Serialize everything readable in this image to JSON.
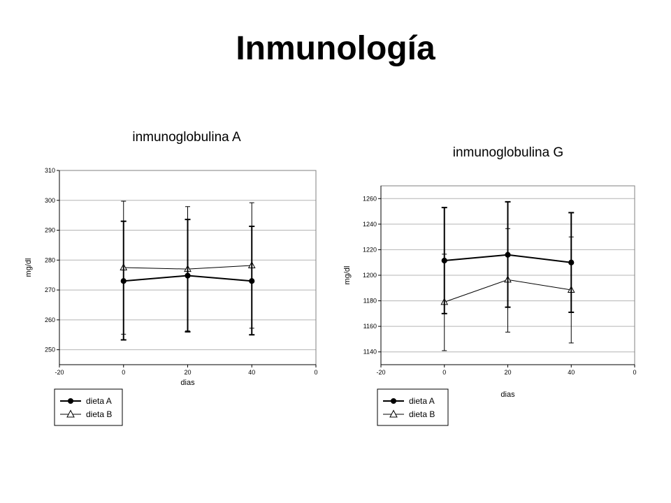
{
  "slide": {
    "title": "Inmunología"
  },
  "chart_data": [
    {
      "type": "line",
      "title": "inmunoglobulina A",
      "xlabel": "dias",
      "ylabel": "mg/dl",
      "xlim": [
        -20,
        60
      ],
      "ylim": [
        245,
        310
      ],
      "x_ticks": [
        "-20",
        "0",
        "20",
        "40",
        "0"
      ],
      "y_ticks": [
        250,
        260,
        270,
        280,
        290,
        300,
        310
      ],
      "grid": "horizontal",
      "legend": "bottom-left",
      "x": [
        0,
        20,
        40
      ],
      "series": [
        {
          "name": "dieta A",
          "marker": "filled-circle",
          "values": [
            273,
            274.8,
            273
          ],
          "err_low": [
            253.3,
            256,
            255
          ],
          "err_high": [
            293,
            293.6,
            291.3
          ]
        },
        {
          "name": "dieta B",
          "marker": "open-triangle",
          "values": [
            277.5,
            277,
            278.2
          ],
          "err_low": [
            255.2,
            256.3,
            257.2
          ],
          "err_high": [
            299.7,
            297.9,
            299.2
          ]
        }
      ]
    },
    {
      "type": "line",
      "title": "inmunoglobulina G",
      "xlabel": "dias",
      "ylabel": "mg/dl",
      "xlim": [
        -20,
        60
      ],
      "ylim": [
        1130,
        1270
      ],
      "x_ticks": [
        "-20",
        "0",
        "20",
        "40",
        "0"
      ],
      "y_ticks": [
        1140,
        1160,
        1180,
        1200,
        1220,
        1240,
        1260
      ],
      "grid": "horizontal",
      "legend": "bottom-left",
      "x": [
        0,
        20,
        40
      ],
      "series": [
        {
          "name": "dieta A",
          "marker": "filled-circle",
          "values": [
            1211.5,
            1216,
            1210
          ],
          "err_low": [
            1170,
            1175,
            1171
          ],
          "err_high": [
            1253,
            1257.5,
            1249
          ]
        },
        {
          "name": "dieta B",
          "marker": "open-triangle",
          "values": [
            1179,
            1196.5,
            1188.5
          ],
          "err_low": [
            1141,
            1155.5,
            1147
          ],
          "err_high": [
            1216.5,
            1236.5,
            1230
          ]
        }
      ]
    }
  ]
}
